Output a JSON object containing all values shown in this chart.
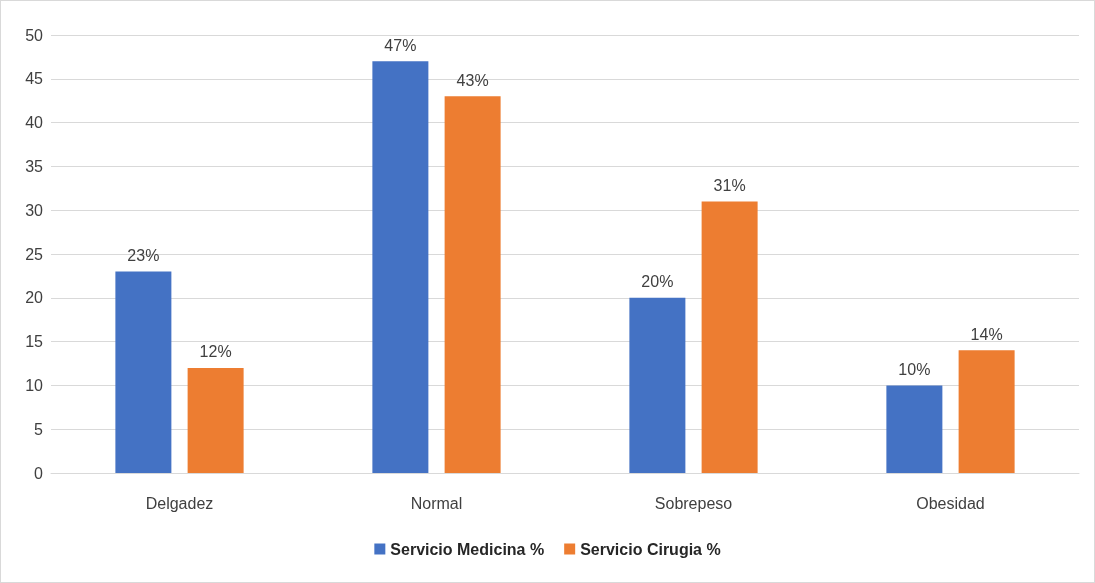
{
  "chart_data": {
    "type": "bar",
    "categories": [
      "Delgadez",
      "Normal",
      "Sobrepeso",
      "Obesidad"
    ],
    "series": [
      {
        "name": "Servicio Medicina %",
        "color": "#4472c4",
        "values": [
          23,
          47,
          20,
          10
        ],
        "value_labels": [
          "23%",
          "47%",
          "20%",
          "10%"
        ]
      },
      {
        "name": "Servicio Cirugia %",
        "color": "#ed7d31",
        "values": [
          12,
          43,
          31,
          14
        ],
        "value_labels": [
          "12%",
          "43%",
          "31%",
          "14%"
        ]
      }
    ],
    "ylim": [
      0,
      50
    ],
    "yticks": [
      0,
      5,
      10,
      15,
      20,
      25,
      30,
      35,
      40,
      45,
      50
    ],
    "grid": "y",
    "legend": "bottom"
  }
}
